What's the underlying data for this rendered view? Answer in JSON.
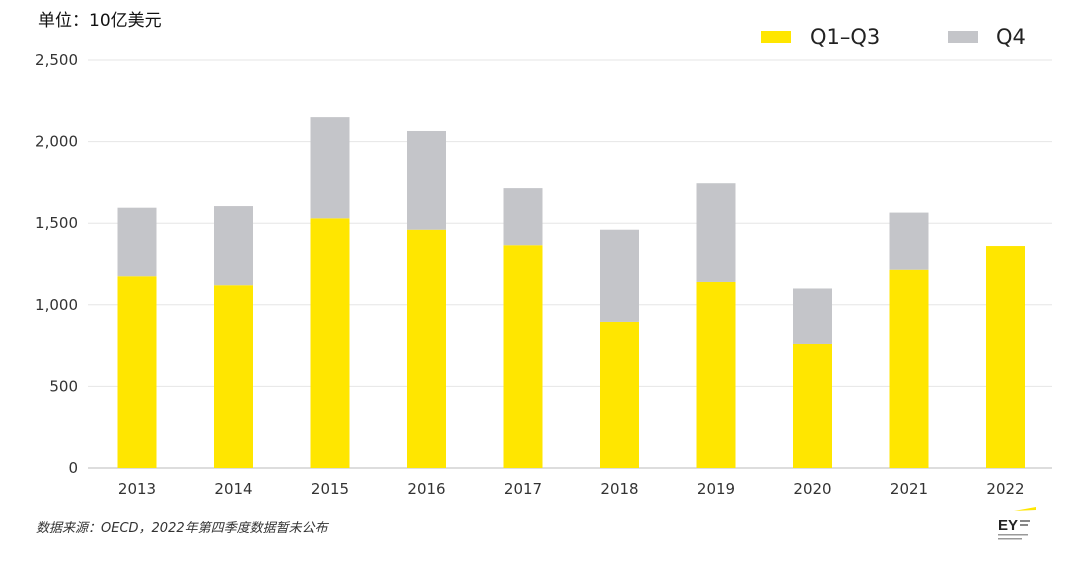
{
  "unit_label": "单位：10亿美元",
  "source_note": "数据来源：OECD，2022年第四季度数据暂未公布",
  "logo_text": "EY",
  "colors": {
    "q1_q3": "#FFE600",
    "q4": "#C4C5C9",
    "grid": "#E6E6E6",
    "axis": "#BBBBBB"
  },
  "chart_data": {
    "type": "bar",
    "stacked": true,
    "categories": [
      "2013",
      "2014",
      "2015",
      "2016",
      "2017",
      "2018",
      "2019",
      "2020",
      "2021",
      "2022"
    ],
    "series": [
      {
        "name": "Q1–Q3",
        "values": [
          1175,
          1120,
          1530,
          1460,
          1365,
          895,
          1140,
          760,
          1215,
          1360
        ]
      },
      {
        "name": "Q4",
        "values": [
          420,
          485,
          620,
          605,
          350,
          565,
          605,
          340,
          350,
          0
        ]
      }
    ],
    "ylim": [
      0,
      2500
    ],
    "yticks": [
      0,
      500,
      1000,
      1500,
      2000,
      2500
    ],
    "ytick_labels": [
      "0",
      "500",
      "1,000",
      "1,500",
      "2,000",
      "2,500"
    ],
    "grid": true,
    "legend_position": "top-right"
  }
}
